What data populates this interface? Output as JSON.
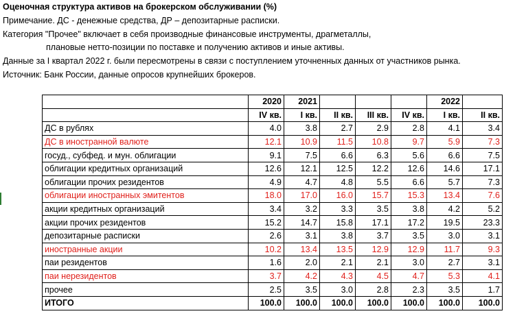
{
  "title": "Оценочная структура активов на брокерском обслуживании (%)",
  "notes": [
    "Примечание. ДС - денежные средства, ДР – депозитарные расписки.",
    "Категория \"Прочее\" включает в себя производные финансовые инструменты, драгметаллы,",
    "плановые нетто-позиции по поставке и получению активов и иные активы.",
    "Данные за I квартал 2022 г. были пересмотрены в связи с поступлением уточненных данных от участников рынка.",
    "Источник: Банк России, данные опросов крупнейших брокеров."
  ],
  "table": {
    "years": [
      "2020",
      "2021",
      "",
      "",
      "",
      "2022",
      ""
    ],
    "quarters": [
      "IV кв.",
      "I кв.",
      "II кв.",
      "III кв.",
      "IV кв.",
      "I кв.",
      "II кв."
    ],
    "rows": [
      {
        "label": "ДС в рублях",
        "values": [
          "4.0",
          "3.8",
          "2.7",
          "2.9",
          "2.8",
          "4.1",
          "3.4"
        ],
        "highlight": false
      },
      {
        "label": "ДС в иностранной валюте",
        "values": [
          "12.1",
          "10.9",
          "11.5",
          "10.8",
          "9.7",
          "5.9",
          "7.3"
        ],
        "highlight": true
      },
      {
        "label": "госуд., субфед. и мун. облигации",
        "values": [
          "9.1",
          "7.5",
          "6.6",
          "6.3",
          "5.6",
          "6.6",
          "7.5"
        ],
        "highlight": false
      },
      {
        "label": "облигации кредитных организаций",
        "values": [
          "12.6",
          "12.1",
          "12.5",
          "12.2",
          "12.6",
          "14.6",
          "17.1"
        ],
        "highlight": false
      },
      {
        "label": "облигации прочих резидентов",
        "values": [
          "4.9",
          "4.7",
          "4.8",
          "5.5",
          "6.6",
          "5.7",
          "7.3"
        ],
        "highlight": false
      },
      {
        "label": "облигации иностранных эмитентов",
        "values": [
          "18.0",
          "17.0",
          "16.0",
          "15.7",
          "15.3",
          "13.4",
          "7.6"
        ],
        "highlight": true
      },
      {
        "label": "акции кредитных организаций",
        "values": [
          "3.4",
          "3.2",
          "3.3",
          "3.5",
          "3.8",
          "4.2",
          "5.2"
        ],
        "highlight": false
      },
      {
        "label": "акции прочих резидентов",
        "values": [
          "15.2",
          "14.7",
          "15.8",
          "17.1",
          "17.2",
          "19.5",
          "23.3"
        ],
        "highlight": false
      },
      {
        "label": "депозитарные расписки",
        "values": [
          "2.6",
          "3.1",
          "3.8",
          "3.7",
          "3.5",
          "3.0",
          "3.1"
        ],
        "highlight": false
      },
      {
        "label": "иностранные акции",
        "values": [
          "10.2",
          "13.4",
          "13.5",
          "12.9",
          "12.9",
          "11.7",
          "9.3"
        ],
        "highlight": true
      },
      {
        "label": "паи резидентов",
        "values": [
          "1.6",
          "2.0",
          "2.1",
          "2.1",
          "3.0",
          "2.7",
          "3.1"
        ],
        "highlight": false
      },
      {
        "label": "паи нерезидентов",
        "values": [
          "3.7",
          "4.2",
          "4.3",
          "4.5",
          "4.7",
          "5.3",
          "4.1"
        ],
        "highlight": true
      },
      {
        "label": "прочее",
        "values": [
          "2.5",
          "3.5",
          "3.0",
          "2.8",
          "2.3",
          "3.5",
          "1.7"
        ],
        "highlight": false
      }
    ],
    "total": {
      "label": "ИТОГО",
      "values": [
        "100.0",
        "100.0",
        "100.0",
        "100.0",
        "100.0",
        "100.0",
        "100.0"
      ]
    }
  },
  "colors": {
    "highlight": "#e0201b",
    "text": "#000000",
    "grid-marker": "#2e7d32"
  }
}
